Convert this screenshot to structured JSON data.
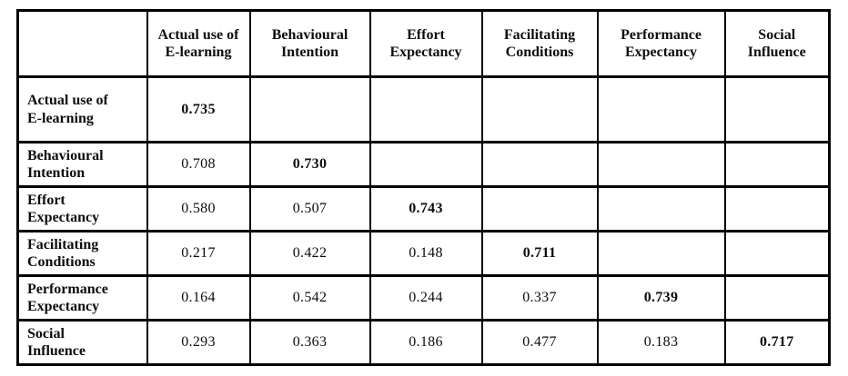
{
  "table": {
    "corner_label": "",
    "columns": [
      "Actual use of E-learning",
      "Behavioural Intention",
      "Effort Expectancy",
      "Facilitating Conditions",
      "Performance Expectancy",
      "Social Influence"
    ],
    "rows": [
      {
        "label": "Actual use of E-learning",
        "values": [
          "0.735",
          "",
          "",
          "",
          "",
          ""
        ]
      },
      {
        "label": "Behavioural Intention",
        "values": [
          "0.708",
          "0.730",
          "",
          "",
          "",
          ""
        ]
      },
      {
        "label": "Effort Expectancy",
        "values": [
          "0.580",
          "0.507",
          "0.743",
          "",
          "",
          ""
        ]
      },
      {
        "label": "Facilitating Conditions",
        "values": [
          "0.217",
          "0.422",
          "0.148",
          "0.711",
          "",
          ""
        ]
      },
      {
        "label": "Performance Expectancy",
        "values": [
          "0.164",
          "0.542",
          "0.244",
          "0.337",
          "0.739",
          ""
        ]
      },
      {
        "label": "Social Influence",
        "values": [
          "0.293",
          "0.363",
          "0.186",
          "0.477",
          "0.183",
          "0.717"
        ]
      }
    ],
    "style": {
      "border_color": "#000000",
      "text_color": "#0d0d0d",
      "background_color": "#ffffff",
      "diagonal_bold": true
    }
  },
  "chart_data": {
    "type": "table",
    "title": "",
    "categories": [
      "Actual use of E-learning",
      "Behavioural Intention",
      "Effort Expectancy",
      "Facilitating Conditions",
      "Performance Expectancy",
      "Social Influence"
    ],
    "series": [
      {
        "name": "Actual use of E-learning",
        "values": [
          0.735,
          null,
          null,
          null,
          null,
          null
        ]
      },
      {
        "name": "Behavioural Intention",
        "values": [
          0.708,
          0.73,
          null,
          null,
          null,
          null
        ]
      },
      {
        "name": "Effort Expectancy",
        "values": [
          0.58,
          0.507,
          0.743,
          null,
          null,
          null
        ]
      },
      {
        "name": "Facilitating Conditions",
        "values": [
          0.217,
          0.422,
          0.148,
          0.711,
          null,
          null
        ]
      },
      {
        "name": "Performance Expectancy",
        "values": [
          0.164,
          0.542,
          0.244,
          0.337,
          0.739,
          null
        ]
      },
      {
        "name": "Social Influence",
        "values": [
          0.293,
          0.363,
          0.186,
          0.477,
          0.183,
          0.717
        ]
      }
    ]
  }
}
